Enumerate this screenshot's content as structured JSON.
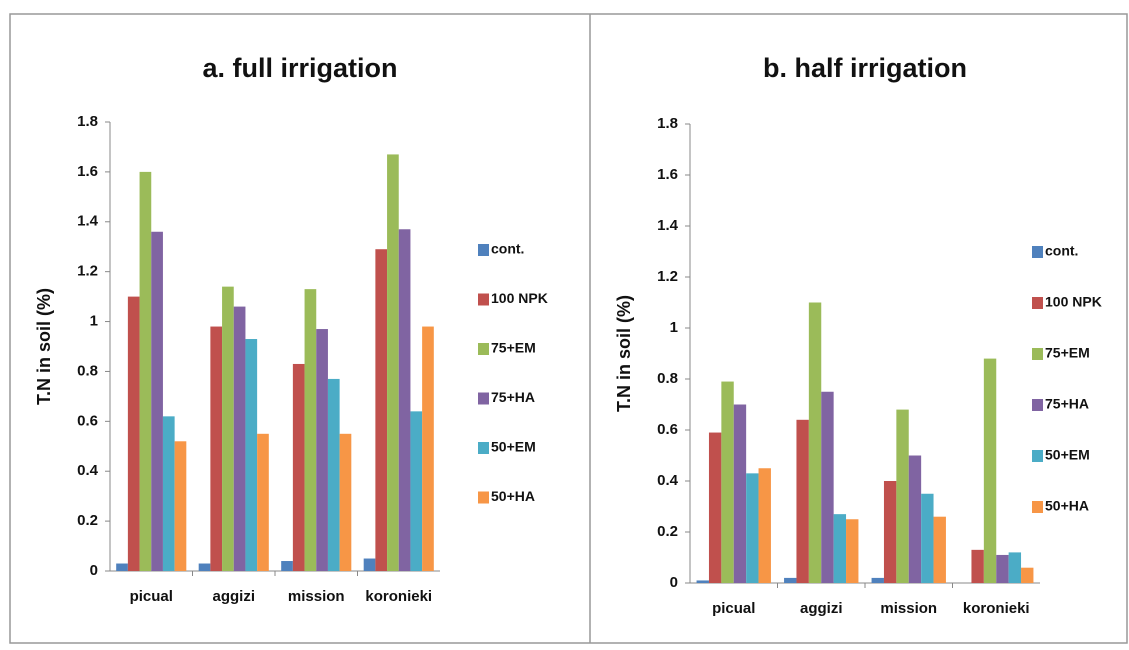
{
  "chart_data": [
    {
      "type": "bar",
      "title": "a. full irrigation",
      "ylabel": "T.N in soil  (%)",
      "categories": [
        "picual",
        "aggizi",
        "mission",
        "koronieki"
      ],
      "series": [
        {
          "name": "cont.",
          "color": "#4f81bd",
          "values": [
            0.03,
            0.03,
            0.04,
            0.05
          ]
        },
        {
          "name": "100 NPK",
          "color": "#c0504d",
          "values": [
            1.1,
            0.98,
            0.83,
            1.29
          ]
        },
        {
          "name": "75+EM",
          "color": "#9bbb59",
          "values": [
            1.6,
            1.14,
            1.13,
            1.67
          ]
        },
        {
          "name": "75+HA",
          "color": "#8064a2",
          "values": [
            1.36,
            1.06,
            0.97,
            1.37
          ]
        },
        {
          "name": "50+EM",
          "color": "#4bacc6",
          "values": [
            0.62,
            0.93,
            0.77,
            0.64
          ]
        },
        {
          "name": "50+HA",
          "color": "#f79646",
          "values": [
            0.52,
            0.55,
            0.55,
            0.98
          ]
        }
      ],
      "ylim": [
        0,
        1.8
      ],
      "yticks": [
        0,
        0.2,
        0.4,
        0.6,
        0.8,
        1,
        1.2,
        1.4,
        1.6,
        1.8
      ],
      "legend": "right"
    },
    {
      "type": "bar",
      "title": "b. half irrigation",
      "ylabel": "T.N  in soil (%)",
      "categories": [
        "picual",
        "aggizi",
        "mission",
        "koronieki"
      ],
      "series": [
        {
          "name": "cont.",
          "color": "#4f81bd",
          "values": [
            0.01,
            0.02,
            0.02,
            0
          ]
        },
        {
          "name": "100 NPK",
          "color": "#c0504d",
          "values": [
            0.59,
            0.64,
            0.4,
            0.13
          ]
        },
        {
          "name": "75+EM",
          "color": "#9bbb59",
          "values": [
            0.79,
            1.1,
            0.68,
            0.88
          ]
        },
        {
          "name": "75+HA",
          "color": "#8064a2",
          "values": [
            0.7,
            0.75,
            0.5,
            0.11
          ]
        },
        {
          "name": "50+EM",
          "color": "#4bacc6",
          "values": [
            0.43,
            0.27,
            0.35,
            0.12
          ]
        },
        {
          "name": "50+HA",
          "color": "#f79646",
          "values": [
            0.45,
            0.25,
            0.26,
            0.06
          ]
        }
      ],
      "ylim": [
        0,
        1.8
      ],
      "yticks": [
        0,
        0.2,
        0.4,
        0.6,
        0.8,
        1,
        1.2,
        1.4,
        1.6,
        1.8
      ],
      "legend": "right"
    }
  ]
}
